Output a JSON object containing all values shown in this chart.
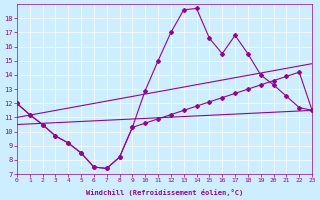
{
  "xlabel": "Windchill (Refroidissement éolien,°C)",
  "bg_color": "#cceeff",
  "line_color": "#990099",
  "xmin": 0,
  "xmax": 23,
  "ymin": 7,
  "ymax": 19,
  "yticks": [
    7,
    8,
    9,
    10,
    11,
    12,
    13,
    14,
    15,
    16,
    17,
    18
  ],
  "xticks": [
    0,
    1,
    2,
    3,
    4,
    5,
    6,
    7,
    8,
    9,
    10,
    11,
    12,
    13,
    14,
    15,
    16,
    17,
    18,
    19,
    20,
    21,
    22,
    23
  ],
  "curve_main_x": [
    0,
    1,
    2,
    3,
    4,
    5,
    6,
    7,
    8,
    9,
    10,
    11,
    12,
    13,
    14,
    15,
    16,
    17,
    18,
    19,
    20,
    21,
    22,
    23
  ],
  "curve_main_y": [
    12.0,
    11.2,
    10.5,
    9.7,
    9.2,
    8.5,
    7.5,
    7.4,
    8.2,
    10.3,
    12.9,
    15.0,
    17.0,
    18.6,
    18.7,
    16.6,
    15.5,
    16.8,
    15.5,
    14.0,
    13.3,
    12.5,
    11.7,
    11.5
  ],
  "curve_v_x": [
    0,
    1,
    2,
    3,
    4,
    5,
    6,
    7,
    8,
    9,
    10,
    11,
    12,
    13,
    14,
    15,
    16,
    17,
    18,
    19,
    20,
    21,
    22,
    23
  ],
  "curve_v_y": [
    12.0,
    11.2,
    10.5,
    9.7,
    9.2,
    8.5,
    7.5,
    7.4,
    8.2,
    10.3,
    10.6,
    10.9,
    11.2,
    11.5,
    11.8,
    12.1,
    12.4,
    12.7,
    13.0,
    13.3,
    13.6,
    13.9,
    14.2,
    11.5
  ],
  "line1_x": [
    0,
    23
  ],
  "line1_y": [
    11.0,
    14.8
  ],
  "line2_x": [
    0,
    23
  ],
  "line2_y": [
    10.5,
    11.5
  ]
}
